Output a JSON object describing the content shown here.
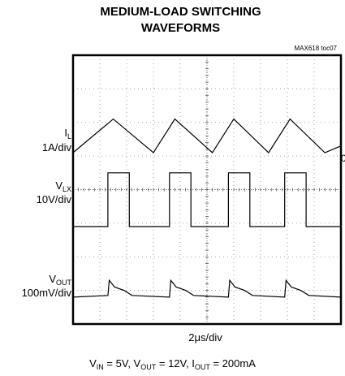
{
  "title_line1": "MEDIUM-LOAD SWITCHING",
  "title_line2": "WAVEFORMS",
  "figure_id": "MAX618 toc07",
  "xlabel": "2μs/div",
  "conditions": {
    "vin": "5V",
    "vout": "12V",
    "iout": "200mA"
  },
  "edge_mark": "0",
  "chart_data": {
    "type": "line",
    "title": "MEDIUM-LOAD SWITCHING WAVEFORMS",
    "xlabel": "2μs/div",
    "x_divisions": 10,
    "y_divisions": 8,
    "grid": true,
    "series": [
      {
        "name": "IL",
        "scale": "1A/div",
        "color": "#000000",
        "x": [
          0,
          1.5,
          3.0,
          3.8,
          5.2,
          6.0,
          7.3,
          8.1,
          9.4,
          10
        ],
        "y": [
          5.1,
          6.1,
          5.1,
          6.1,
          5.1,
          6.1,
          5.1,
          6.1,
          5.1,
          5.3
        ]
      },
      {
        "name": "VLX",
        "scale": "10V/div",
        "color": "#000000",
        "x": [
          0,
          1.3,
          1.3,
          2.1,
          2.1,
          3.6,
          3.6,
          4.4,
          4.4,
          5.8,
          5.8,
          6.6,
          6.6,
          7.9,
          7.9,
          8.7,
          8.7,
          10
        ],
        "y": [
          2.9,
          2.9,
          4.5,
          4.5,
          2.9,
          2.9,
          4.5,
          4.5,
          2.9,
          2.9,
          4.5,
          4.5,
          2.9,
          2.9,
          4.5,
          4.5,
          2.9,
          2.9
        ]
      },
      {
        "name": "VOUT",
        "scale": "100mV/div",
        "color": "#000000",
        "x": [
          0,
          1.3,
          1.35,
          1.55,
          1.9,
          2.2,
          3.6,
          3.65,
          3.85,
          4.2,
          4.5,
          5.8,
          5.85,
          6.05,
          6.4,
          6.7,
          7.9,
          7.95,
          8.15,
          8.5,
          8.8,
          10
        ],
        "y": [
          0.8,
          0.85,
          1.3,
          1.1,
          1.0,
          0.85,
          0.8,
          1.3,
          1.1,
          1.0,
          0.85,
          0.8,
          1.3,
          1.1,
          1.0,
          0.85,
          0.8,
          1.3,
          1.1,
          1.0,
          0.85,
          0.8
        ]
      }
    ]
  }
}
